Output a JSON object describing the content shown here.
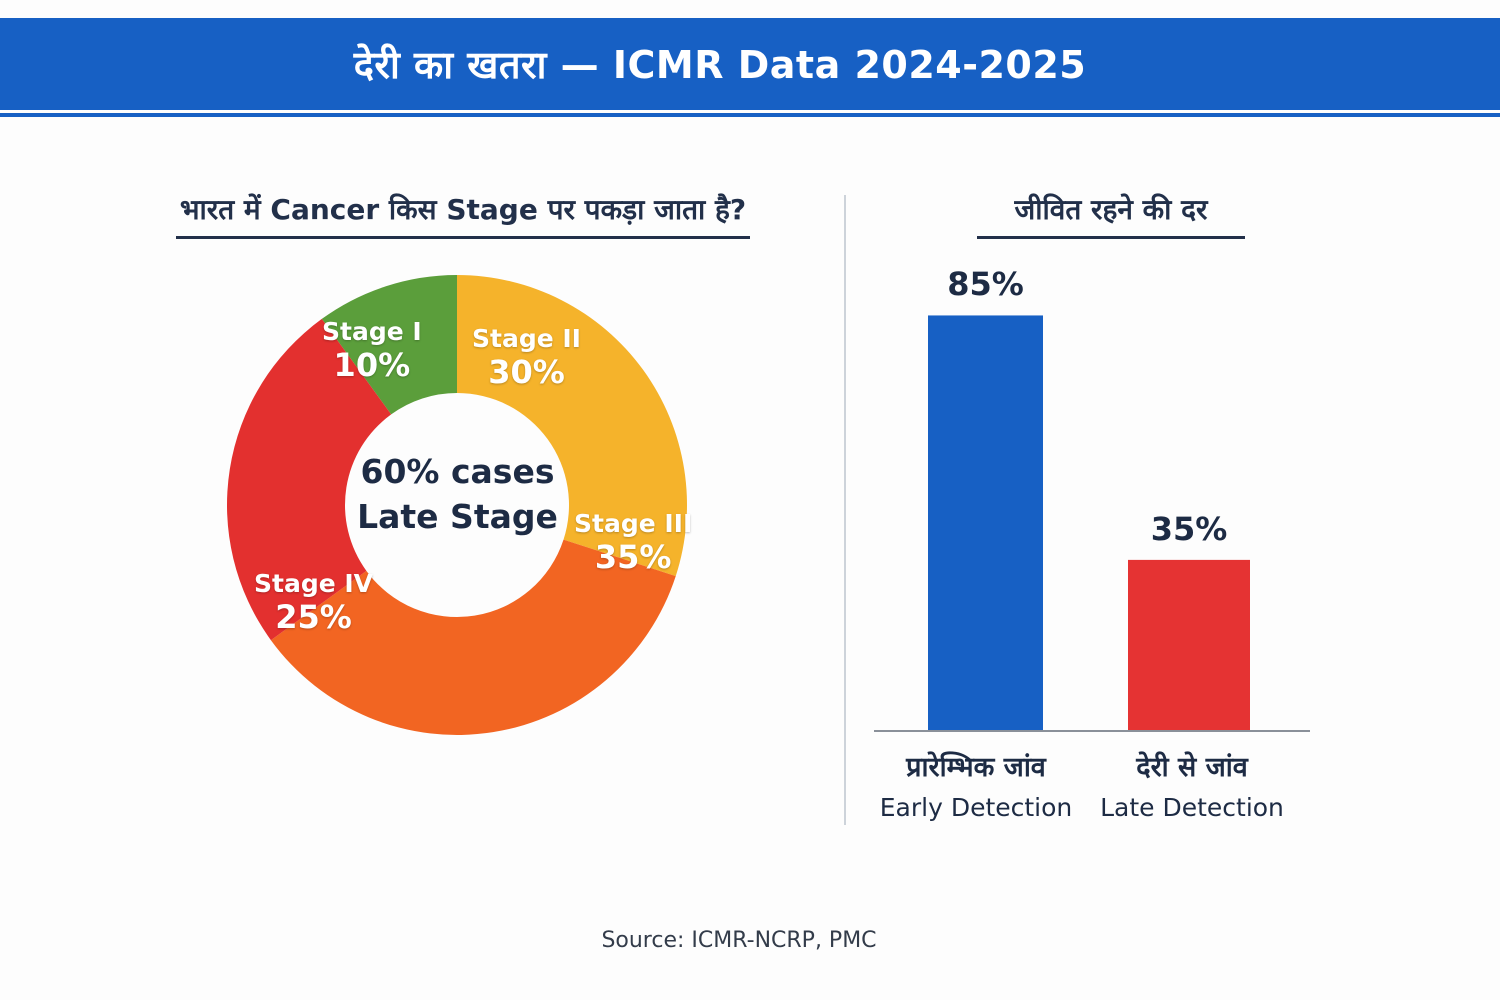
{
  "header": {
    "title": "देरी का खतरा — ICMR Data 2024-2025"
  },
  "source": "Source: ICMR-NCRP, PMC",
  "chart_data": [
    {
      "type": "pie",
      "variant": "donut",
      "title": "भारत में Cancer किस Stage पर पकड़ा जाता है?",
      "center_text": [
        "60% cases",
        "Late Stage"
      ],
      "slices": [
        {
          "label": "Stage I",
          "value": 10,
          "value_label": "10%",
          "color": "#5b9e3b"
        },
        {
          "label": "Stage II",
          "value": 30,
          "value_label": "30%",
          "color": "#f5b32b"
        },
        {
          "label": "Stage III",
          "value": 35,
          "value_label": "35%",
          "color": "#f26522"
        },
        {
          "label": "Stage IV",
          "value": 25,
          "value_label": "25%",
          "color": "#e3302f"
        }
      ]
    },
    {
      "type": "bar",
      "title": "जीवित रहने की दर",
      "categories": [
        {
          "hindi": "प्रारेम्भिक जांव",
          "english": "Early Detection"
        },
        {
          "hindi": "देरी से जांव",
          "english": "Late Detection"
        }
      ],
      "values": [
        85,
        35
      ],
      "value_labels": [
        "85%",
        "35%"
      ],
      "colors": [
        "#1760c4",
        "#e53333"
      ],
      "ylim": [
        0,
        90
      ],
      "grid": false
    }
  ]
}
